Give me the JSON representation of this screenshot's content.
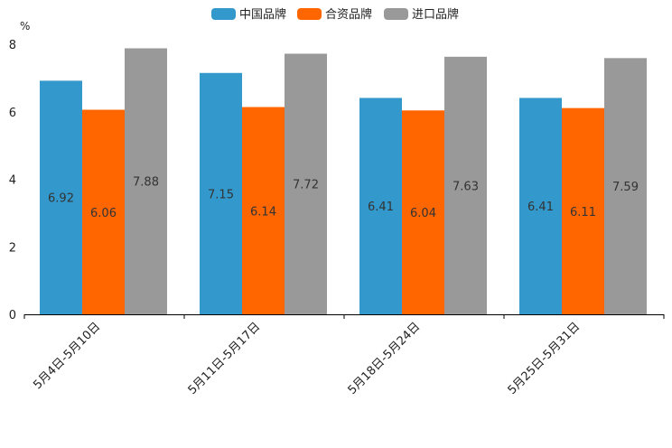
{
  "chart_data": {
    "type": "bar",
    "title": "",
    "xlabel": "",
    "ylabel": "%",
    "ylim": [
      0,
      8
    ],
    "yticks": [
      0,
      2,
      4,
      6,
      8
    ],
    "categories": [
      "5月4日-5月10日",
      "5月11日-5月17日",
      "5月18日-5月24日",
      "5月25日-5月31日"
    ],
    "series": [
      {
        "name": "中国品牌",
        "color": "#3399cc",
        "values": [
          6.92,
          7.15,
          6.41,
          6.41
        ]
      },
      {
        "name": "合资品牌",
        "color": "#ff6600",
        "values": [
          6.06,
          6.14,
          6.04,
          6.11
        ]
      },
      {
        "name": "进口品牌",
        "color": "#999999",
        "values": [
          7.88,
          7.72,
          7.63,
          7.59
        ]
      }
    ],
    "legend_position": "top-center",
    "value_labels": [
      [
        "6.92",
        "7.15",
        "6.41",
        "6.41"
      ],
      [
        "6.06",
        "6.14",
        "6.04",
        "6.11"
      ],
      [
        "7.88",
        "7.72",
        "7.63",
        "7.59"
      ]
    ]
  }
}
